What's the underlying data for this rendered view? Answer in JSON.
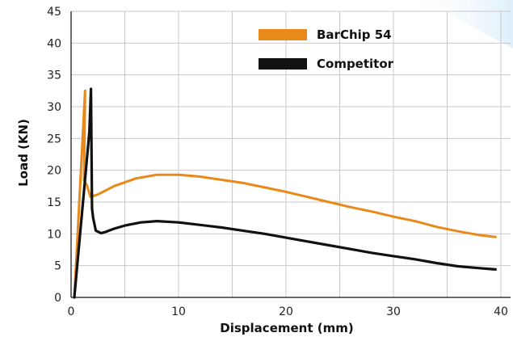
{
  "chart_data": {
    "type": "line",
    "xlabel": "Displacement (mm)",
    "ylabel": "Load (KN)",
    "xlim": [
      0,
      40
    ],
    "ylim": [
      0,
      45
    ],
    "x_ticks": [
      0,
      10,
      20,
      30,
      40
    ],
    "y_ticks": [
      0,
      5,
      10,
      15,
      20,
      25,
      30,
      35,
      40,
      45
    ],
    "grid": true,
    "legend_position": "top-right",
    "series": [
      {
        "name": "BarChip 54",
        "color": "#e8891a",
        "points": [
          [
            0.3,
            0
          ],
          [
            0.9,
            19.5
          ],
          [
            1.3,
            32.5
          ],
          [
            1.2,
            18.5
          ],
          [
            1.5,
            17.5
          ],
          [
            1.8,
            15.8
          ],
          [
            2.5,
            16.2
          ],
          [
            4,
            17.5
          ],
          [
            6,
            18.7
          ],
          [
            8,
            19.3
          ],
          [
            10,
            19.3
          ],
          [
            12,
            19
          ],
          [
            14,
            18.5
          ],
          [
            16,
            18
          ],
          [
            18,
            17.3
          ],
          [
            20,
            16.6
          ],
          [
            22,
            15.8
          ],
          [
            24,
            15
          ],
          [
            26,
            14.2
          ],
          [
            28,
            13.5
          ],
          [
            30,
            12.7
          ],
          [
            32,
            12
          ],
          [
            34,
            11.1
          ],
          [
            36,
            10.4
          ],
          [
            38,
            9.8
          ],
          [
            39.5,
            9.5
          ]
        ]
      },
      {
        "name": "Competitor",
        "color": "#111111",
        "points": [
          [
            0.3,
            0
          ],
          [
            1.7,
            26
          ],
          [
            1.85,
            32.8
          ],
          [
            1.95,
            14
          ],
          [
            2.05,
            12.5
          ],
          [
            2.3,
            10.5
          ],
          [
            2.8,
            10.1
          ],
          [
            3.2,
            10.3
          ],
          [
            4,
            10.8
          ],
          [
            5,
            11.3
          ],
          [
            6.5,
            11.8
          ],
          [
            8,
            12
          ],
          [
            10,
            11.8
          ],
          [
            12,
            11.4
          ],
          [
            14,
            11
          ],
          [
            16,
            10.5
          ],
          [
            18,
            10
          ],
          [
            20,
            9.4
          ],
          [
            22,
            8.8
          ],
          [
            24,
            8.2
          ],
          [
            26,
            7.6
          ],
          [
            28,
            7
          ],
          [
            30,
            6.5
          ],
          [
            32,
            6
          ],
          [
            34,
            5.4
          ],
          [
            36,
            4.9
          ],
          [
            38,
            4.6
          ],
          [
            39.5,
            4.4
          ]
        ]
      }
    ]
  }
}
